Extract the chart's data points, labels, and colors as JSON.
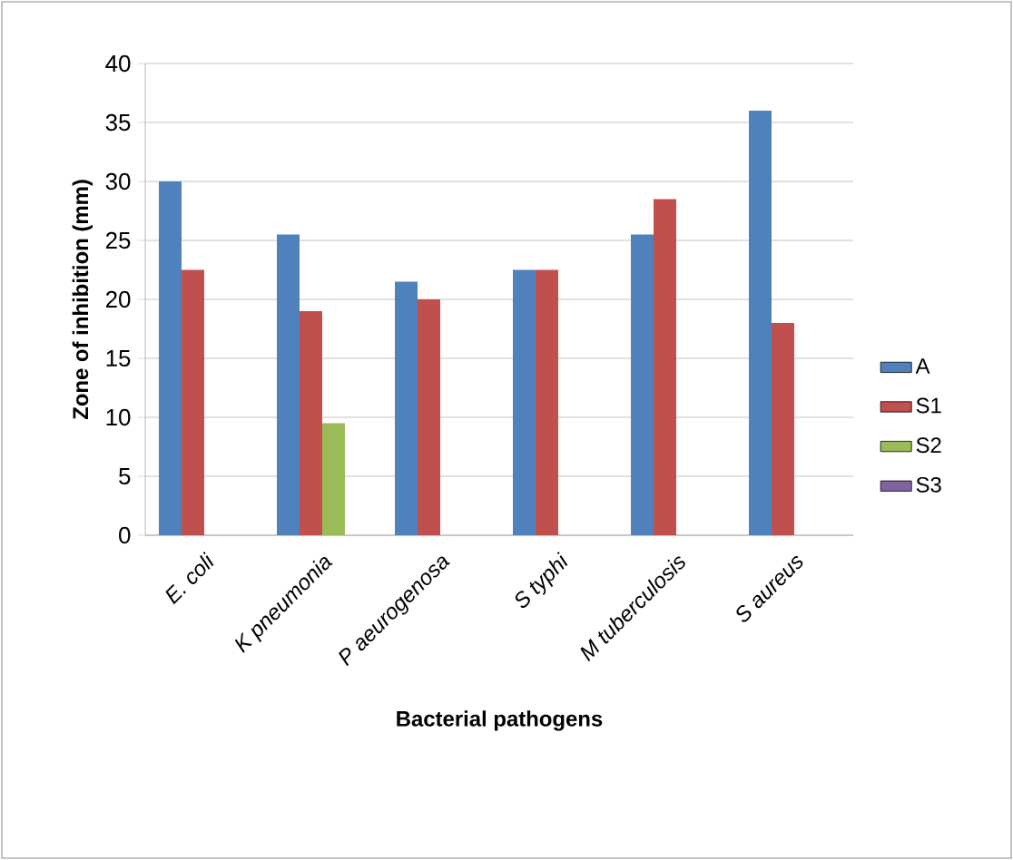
{
  "chart_data": {
    "type": "bar",
    "xlabel": "Bacterial pathogens",
    "ylabel": "Zone of inhibition (mm)",
    "categories": [
      "E. coli",
      "K pneumonia",
      "P aeurogenosa",
      "S typhi",
      "M tuberculosis",
      "S aureus"
    ],
    "series": [
      {
        "name": "A",
        "color": "#4f81bd",
        "values": [
          30,
          25.5,
          21.5,
          22.5,
          25.5,
          36
        ]
      },
      {
        "name": "S1",
        "color": "#c0504d",
        "values": [
          22.5,
          19,
          20,
          22.5,
          28.5,
          18
        ]
      },
      {
        "name": "S2",
        "color": "#9bbb59",
        "values": [
          null,
          9.5,
          null,
          null,
          null,
          null
        ]
      },
      {
        "name": "S3",
        "color": "#8064a2",
        "values": [
          null,
          null,
          null,
          null,
          null,
          null
        ]
      }
    ],
    "ylim": [
      0,
      40
    ],
    "yticks": [
      0,
      5,
      10,
      15,
      20,
      25,
      30,
      35,
      40
    ],
    "grid": "y",
    "legend": "right"
  }
}
